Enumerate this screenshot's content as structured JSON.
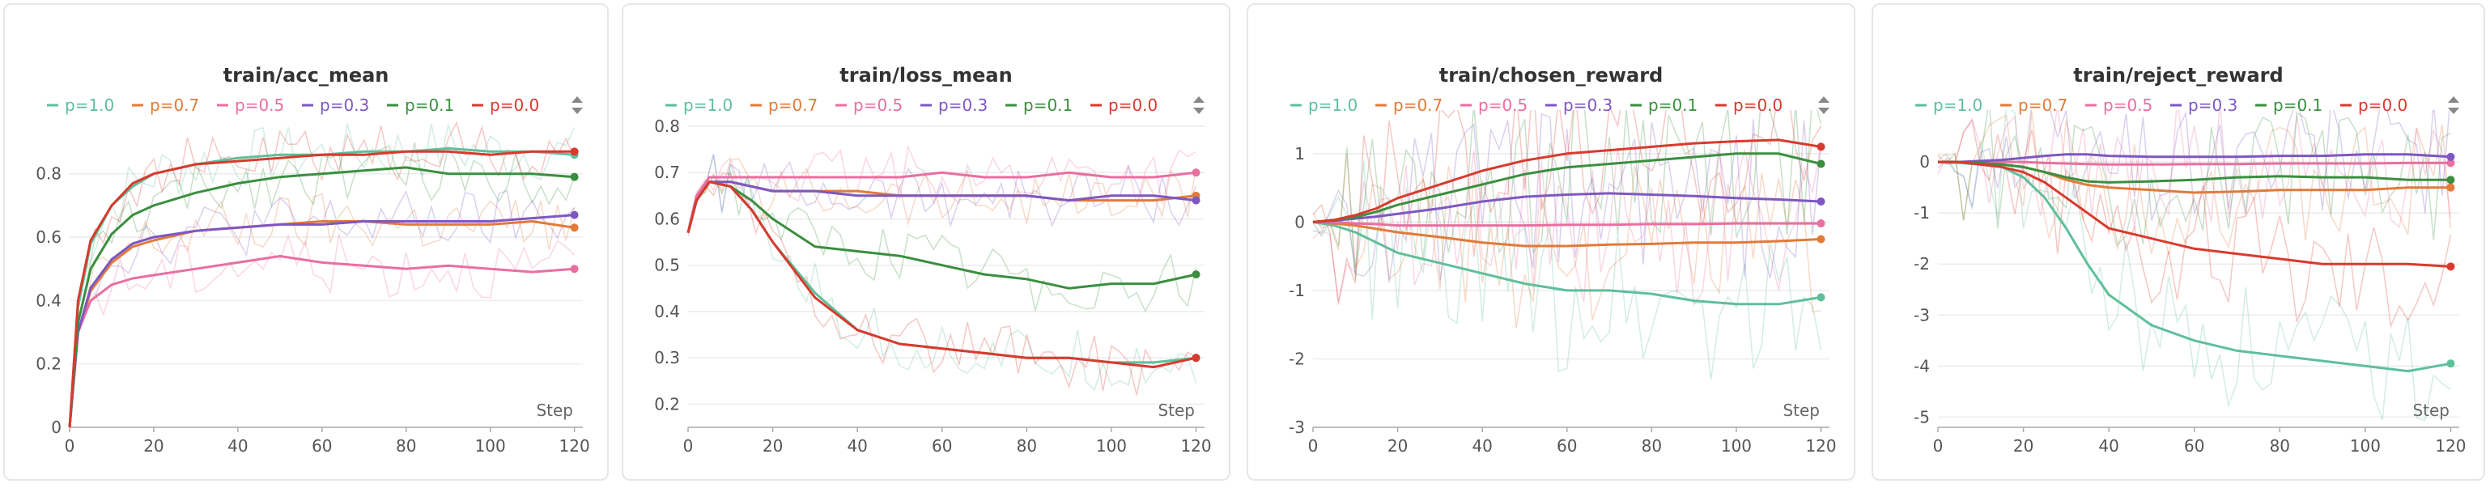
{
  "chart_data": [
    {
      "type": "line",
      "title": "train/acc_mean",
      "xlabel": "Step",
      "xlim": [
        0,
        122
      ],
      "ylim": [
        0,
        0.95
      ],
      "xticks": [
        0,
        20,
        40,
        60,
        80,
        100,
        120
      ],
      "yticks": [
        0,
        0.2,
        0.4,
        0.6,
        0.8
      ],
      "ytick_labels": [
        "0",
        "0.2",
        "0.4",
        "0.6",
        "0.8"
      ],
      "legend_position": "top",
      "series": [
        {
          "name": "p=1.0",
          "color": "#5fbf9a",
          "x": [
            0,
            2,
            5,
            10,
            15,
            20,
            30,
            40,
            50,
            60,
            70,
            80,
            90,
            100,
            110,
            120
          ],
          "values": [
            0,
            0.38,
            0.58,
            0.7,
            0.76,
            0.8,
            0.83,
            0.85,
            0.86,
            0.86,
            0.87,
            0.87,
            0.88,
            0.87,
            0.87,
            0.86
          ]
        },
        {
          "name": "p=0.7",
          "color": "#e07b39",
          "x": [
            0,
            2,
            5,
            10,
            15,
            20,
            30,
            40,
            50,
            60,
            70,
            80,
            90,
            100,
            110,
            120
          ],
          "values": [
            0,
            0.3,
            0.43,
            0.52,
            0.57,
            0.59,
            0.62,
            0.63,
            0.64,
            0.65,
            0.65,
            0.64,
            0.64,
            0.64,
            0.65,
            0.63
          ]
        },
        {
          "name": "p=0.5",
          "color": "#e96fa0",
          "x": [
            0,
            2,
            5,
            10,
            15,
            20,
            30,
            40,
            50,
            60,
            70,
            80,
            90,
            100,
            110,
            120
          ],
          "values": [
            0,
            0.3,
            0.4,
            0.45,
            0.47,
            0.48,
            0.5,
            0.52,
            0.54,
            0.52,
            0.51,
            0.5,
            0.51,
            0.5,
            0.49,
            0.5
          ]
        },
        {
          "name": "p=0.3",
          "color": "#7e57c2",
          "x": [
            0,
            2,
            5,
            10,
            15,
            20,
            30,
            40,
            50,
            60,
            70,
            80,
            90,
            100,
            110,
            120
          ],
          "values": [
            0,
            0.3,
            0.44,
            0.53,
            0.58,
            0.6,
            0.62,
            0.63,
            0.64,
            0.64,
            0.65,
            0.65,
            0.65,
            0.65,
            0.66,
            0.67
          ]
        },
        {
          "name": "p=0.1",
          "color": "#3a8f3f",
          "x": [
            0,
            2,
            5,
            10,
            15,
            20,
            30,
            40,
            50,
            60,
            70,
            80,
            90,
            100,
            110,
            120
          ],
          "values": [
            0,
            0.33,
            0.5,
            0.61,
            0.67,
            0.7,
            0.74,
            0.77,
            0.79,
            0.8,
            0.81,
            0.82,
            0.8,
            0.8,
            0.8,
            0.79
          ]
        },
        {
          "name": "p=0.0",
          "color": "#d83a2e",
          "x": [
            0,
            2,
            5,
            10,
            15,
            20,
            30,
            40,
            50,
            60,
            70,
            80,
            90,
            100,
            110,
            120
          ],
          "values": [
            0,
            0.4,
            0.59,
            0.7,
            0.77,
            0.8,
            0.83,
            0.84,
            0.85,
            0.86,
            0.86,
            0.87,
            0.87,
            0.86,
            0.87,
            0.87
          ]
        }
      ]
    },
    {
      "type": "line",
      "title": "train/loss_mean",
      "xlabel": "Step",
      "xlim": [
        0,
        122
      ],
      "ylim": [
        0.15,
        0.8
      ],
      "xticks": [
        0,
        20,
        40,
        60,
        80,
        100,
        120
      ],
      "yticks": [
        0.2,
        0.3,
        0.4,
        0.5,
        0.6,
        0.7,
        0.8
      ],
      "ytick_labels": [
        "0.2",
        "0.3",
        "0.4",
        "0.5",
        "0.6",
        "0.7",
        "0.8"
      ],
      "legend_position": "top",
      "series": [
        {
          "name": "p=1.0",
          "color": "#5fbf9a",
          "x": [
            0,
            2,
            5,
            10,
            15,
            20,
            30,
            40,
            50,
            60,
            70,
            80,
            90,
            100,
            110,
            120
          ],
          "values": [
            0.57,
            0.64,
            0.68,
            0.67,
            0.62,
            0.55,
            0.44,
            0.36,
            0.33,
            0.32,
            0.31,
            0.3,
            0.3,
            0.29,
            0.29,
            0.3
          ]
        },
        {
          "name": "p=0.7",
          "color": "#e07b39",
          "x": [
            0,
            2,
            5,
            10,
            15,
            20,
            30,
            40,
            50,
            60,
            70,
            80,
            90,
            100,
            110,
            120
          ],
          "values": [
            0.57,
            0.64,
            0.68,
            0.68,
            0.67,
            0.66,
            0.66,
            0.66,
            0.65,
            0.65,
            0.65,
            0.65,
            0.64,
            0.64,
            0.64,
            0.65
          ]
        },
        {
          "name": "p=0.5",
          "color": "#e96fa0",
          "x": [
            0,
            2,
            5,
            10,
            15,
            20,
            30,
            40,
            50,
            60,
            70,
            80,
            90,
            100,
            110,
            120
          ],
          "values": [
            0.57,
            0.65,
            0.69,
            0.69,
            0.69,
            0.69,
            0.69,
            0.69,
            0.69,
            0.7,
            0.69,
            0.69,
            0.7,
            0.69,
            0.69,
            0.7
          ]
        },
        {
          "name": "p=0.3",
          "color": "#7e57c2",
          "x": [
            0,
            2,
            5,
            10,
            15,
            20,
            30,
            40,
            50,
            60,
            70,
            80,
            90,
            100,
            110,
            120
          ],
          "values": [
            0.57,
            0.64,
            0.68,
            0.68,
            0.67,
            0.66,
            0.66,
            0.65,
            0.65,
            0.65,
            0.65,
            0.65,
            0.64,
            0.65,
            0.65,
            0.64
          ]
        },
        {
          "name": "p=0.1",
          "color": "#3a8f3f",
          "x": [
            0,
            2,
            5,
            10,
            15,
            20,
            30,
            40,
            50,
            60,
            70,
            80,
            90,
            100,
            110,
            120
          ],
          "values": [
            0.57,
            0.64,
            0.68,
            0.67,
            0.64,
            0.6,
            0.54,
            0.53,
            0.52,
            0.5,
            0.48,
            0.47,
            0.45,
            0.46,
            0.46,
            0.48
          ]
        },
        {
          "name": "p=0.0",
          "color": "#d83a2e",
          "x": [
            0,
            2,
            5,
            10,
            15,
            20,
            30,
            40,
            50,
            60,
            70,
            80,
            90,
            100,
            110,
            120
          ],
          "values": [
            0.57,
            0.64,
            0.68,
            0.67,
            0.62,
            0.55,
            0.43,
            0.36,
            0.33,
            0.32,
            0.31,
            0.3,
            0.3,
            0.29,
            0.28,
            0.3
          ]
        }
      ]
    },
    {
      "type": "line",
      "title": "train/chosen_reward",
      "xlabel": "Step",
      "xlim": [
        0,
        122
      ],
      "ylim": [
        -3,
        1.4
      ],
      "xticks": [
        0,
        20,
        40,
        60,
        80,
        100,
        120
      ],
      "yticks": [
        -3,
        -2,
        -1,
        0,
        1
      ],
      "ytick_labels": [
        "-3",
        "-2",
        "-1",
        "0",
        "1"
      ],
      "legend_position": "top",
      "series": [
        {
          "name": "p=1.0",
          "color": "#5fbf9a",
          "x": [
            0,
            5,
            10,
            15,
            20,
            30,
            40,
            50,
            60,
            70,
            80,
            90,
            100,
            110,
            120
          ],
          "values": [
            0,
            -0.05,
            -0.15,
            -0.3,
            -0.45,
            -0.6,
            -0.75,
            -0.9,
            -1.0,
            -1.0,
            -1.05,
            -1.15,
            -1.2,
            -1.2,
            -1.1
          ]
        },
        {
          "name": "p=0.7",
          "color": "#e07b39",
          "x": [
            0,
            5,
            10,
            15,
            20,
            30,
            40,
            50,
            60,
            70,
            80,
            90,
            100,
            110,
            120
          ],
          "values": [
            0,
            -0.02,
            -0.05,
            -0.1,
            -0.15,
            -0.22,
            -0.3,
            -0.35,
            -0.35,
            -0.33,
            -0.32,
            -0.3,
            -0.3,
            -0.28,
            -0.25
          ]
        },
        {
          "name": "p=0.5",
          "color": "#e96fa0",
          "x": [
            0,
            5,
            10,
            15,
            20,
            30,
            40,
            50,
            60,
            70,
            80,
            90,
            100,
            110,
            120
          ],
          "values": [
            0,
            0,
            -0.02,
            -0.03,
            -0.05,
            -0.05,
            -0.05,
            -0.05,
            -0.04,
            -0.04,
            -0.03,
            -0.03,
            -0.02,
            -0.02,
            -0.02
          ]
        },
        {
          "name": "p=0.3",
          "color": "#7e57c2",
          "x": [
            0,
            5,
            10,
            15,
            20,
            30,
            40,
            50,
            60,
            70,
            80,
            90,
            100,
            110,
            120
          ],
          "values": [
            0,
            0.02,
            0.05,
            0.08,
            0.12,
            0.2,
            0.3,
            0.37,
            0.4,
            0.42,
            0.4,
            0.38,
            0.35,
            0.33,
            0.3
          ]
        },
        {
          "name": "p=0.1",
          "color": "#3a8f3f",
          "x": [
            0,
            5,
            10,
            15,
            20,
            30,
            40,
            50,
            60,
            70,
            80,
            90,
            100,
            110,
            120
          ],
          "values": [
            0,
            0.03,
            0.07,
            0.15,
            0.25,
            0.4,
            0.55,
            0.7,
            0.8,
            0.85,
            0.9,
            0.95,
            1.0,
            1.0,
            0.85
          ]
        },
        {
          "name": "p=0.0",
          "color": "#d83a2e",
          "x": [
            0,
            5,
            10,
            15,
            20,
            30,
            40,
            50,
            60,
            70,
            80,
            90,
            100,
            110,
            120
          ],
          "values": [
            0,
            0.03,
            0.1,
            0.2,
            0.35,
            0.55,
            0.75,
            0.9,
            1.0,
            1.05,
            1.1,
            1.15,
            1.18,
            1.2,
            1.1
          ]
        }
      ]
    },
    {
      "type": "line",
      "title": "train/reject_reward",
      "xlabel": "Step",
      "xlim": [
        0,
        122
      ],
      "ylim": [
        -5.2,
        0.7
      ],
      "xticks": [
        0,
        20,
        40,
        60,
        80,
        100,
        120
      ],
      "yticks": [
        -5,
        -4,
        -3,
        -2,
        -1,
        0
      ],
      "ytick_labels": [
        "-5",
        "-4",
        "-3",
        "-2",
        "-1",
        "0"
      ],
      "legend_position": "top",
      "series": [
        {
          "name": "p=1.0",
          "color": "#5fbf9a",
          "x": [
            0,
            5,
            10,
            15,
            20,
            25,
            30,
            35,
            40,
            50,
            60,
            70,
            80,
            90,
            100,
            110,
            120
          ],
          "values": [
            0,
            -0.02,
            -0.05,
            -0.1,
            -0.3,
            -0.7,
            -1.3,
            -2.0,
            -2.6,
            -3.2,
            -3.5,
            -3.7,
            -3.8,
            -3.9,
            -4.0,
            -4.1,
            -3.95
          ]
        },
        {
          "name": "p=0.7",
          "color": "#e07b39",
          "x": [
            0,
            5,
            10,
            15,
            20,
            25,
            30,
            35,
            40,
            50,
            60,
            70,
            80,
            90,
            100,
            110,
            120
          ],
          "values": [
            0,
            0,
            -0.02,
            -0.05,
            -0.1,
            -0.2,
            -0.35,
            -0.45,
            -0.5,
            -0.55,
            -0.6,
            -0.58,
            -0.55,
            -0.55,
            -0.55,
            -0.5,
            -0.5
          ]
        },
        {
          "name": "p=0.5",
          "color": "#e96fa0",
          "x": [
            0,
            5,
            10,
            15,
            20,
            25,
            30,
            35,
            40,
            50,
            60,
            70,
            80,
            90,
            100,
            110,
            120
          ],
          "values": [
            0,
            0,
            0,
            0,
            0,
            -0.02,
            -0.03,
            -0.04,
            -0.05,
            -0.05,
            -0.04,
            -0.04,
            -0.03,
            -0.03,
            -0.03,
            -0.02,
            -0.02
          ]
        },
        {
          "name": "p=0.3",
          "color": "#7e57c2",
          "x": [
            0,
            5,
            10,
            15,
            20,
            25,
            30,
            35,
            40,
            50,
            60,
            70,
            80,
            90,
            100,
            110,
            120
          ],
          "values": [
            0,
            0,
            0.02,
            0.04,
            0.08,
            0.12,
            0.15,
            0.15,
            0.12,
            0.1,
            0.1,
            0.1,
            0.12,
            0.12,
            0.15,
            0.15,
            0.1
          ]
        },
        {
          "name": "p=0.1",
          "color": "#3a8f3f",
          "x": [
            0,
            5,
            10,
            15,
            20,
            25,
            30,
            35,
            40,
            50,
            60,
            70,
            80,
            90,
            100,
            110,
            120
          ],
          "values": [
            0,
            0,
            -0.02,
            -0.05,
            -0.1,
            -0.2,
            -0.3,
            -0.38,
            -0.4,
            -0.38,
            -0.35,
            -0.3,
            -0.28,
            -0.3,
            -0.3,
            -0.35,
            -0.35
          ]
        },
        {
          "name": "p=0.0",
          "color": "#d83a2e",
          "x": [
            0,
            5,
            10,
            15,
            20,
            25,
            30,
            35,
            40,
            50,
            60,
            70,
            80,
            90,
            100,
            110,
            120
          ],
          "values": [
            0,
            0,
            -0.05,
            -0.1,
            -0.2,
            -0.4,
            -0.7,
            -1.0,
            -1.3,
            -1.5,
            -1.7,
            -1.8,
            -1.9,
            -2.0,
            -2.0,
            -2.0,
            -2.05
          ]
        }
      ]
    }
  ]
}
